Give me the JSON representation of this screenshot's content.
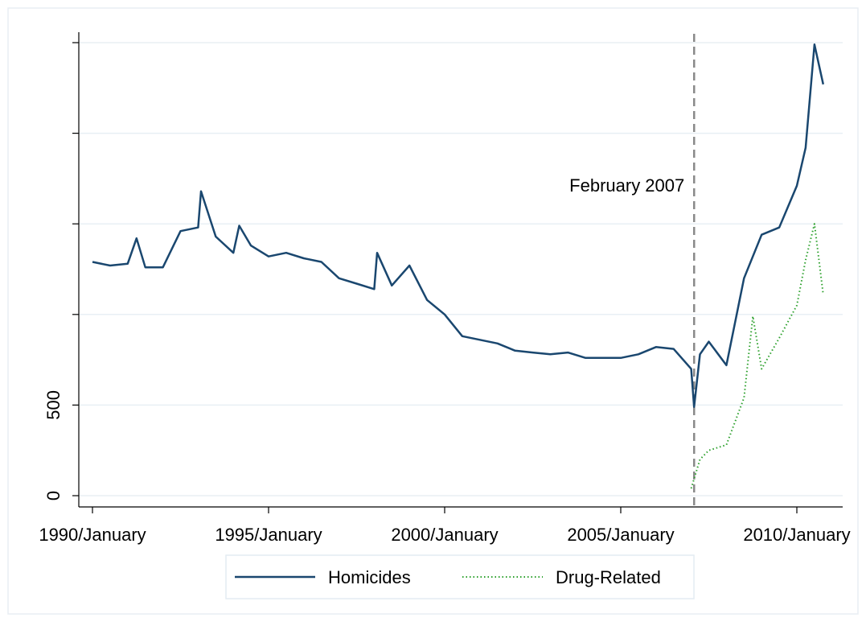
{
  "chart_data": {
    "type": "line",
    "title": "",
    "xlabel": "",
    "ylabel": "",
    "xlim": [
      "1990-01",
      "2010-12"
    ],
    "ylim": [
      0,
      2500
    ],
    "x_ticks": [
      "1990/January",
      "1995/January",
      "2000/January",
      "2005/January",
      "2010/January"
    ],
    "y_tick_values": [
      0,
      500,
      1000,
      1500,
      2000,
      2500
    ],
    "y_tick_labels": [
      "0",
      "500",
      "",
      "",
      "",
      ""
    ],
    "grid": "horizontal",
    "annotation": {
      "label": "February 2007",
      "x": "2007-02"
    },
    "legend": {
      "position": "bottom"
    },
    "series": [
      {
        "name": "Homicides",
        "color": "#1a476f",
        "style": "solid",
        "points": [
          [
            "1990-01",
            1290
          ],
          [
            "1990-07",
            1270
          ],
          [
            "1991-01",
            1280
          ],
          [
            "1991-04",
            1420
          ],
          [
            "1991-07",
            1260
          ],
          [
            "1992-01",
            1260
          ],
          [
            "1992-07",
            1460
          ],
          [
            "1993-01",
            1480
          ],
          [
            "1993-02",
            1680
          ],
          [
            "1993-07",
            1430
          ],
          [
            "1994-01",
            1340
          ],
          [
            "1994-03",
            1490
          ],
          [
            "1994-07",
            1380
          ],
          [
            "1995-01",
            1320
          ],
          [
            "1995-07",
            1340
          ],
          [
            "1996-01",
            1310
          ],
          [
            "1996-07",
            1290
          ],
          [
            "1997-01",
            1200
          ],
          [
            "1997-07",
            1170
          ],
          [
            "1998-01",
            1140
          ],
          [
            "1998-02",
            1340
          ],
          [
            "1998-07",
            1160
          ],
          [
            "1999-01",
            1270
          ],
          [
            "1999-07",
            1080
          ],
          [
            "2000-01",
            1000
          ],
          [
            "2000-07",
            880
          ],
          [
            "2001-01",
            860
          ],
          [
            "2001-07",
            840
          ],
          [
            "2002-01",
            800
          ],
          [
            "2002-07",
            790
          ],
          [
            "2003-01",
            780
          ],
          [
            "2003-07",
            790
          ],
          [
            "2004-01",
            760
          ],
          [
            "2004-07",
            760
          ],
          [
            "2005-01",
            760
          ],
          [
            "2005-07",
            780
          ],
          [
            "2006-01",
            820
          ],
          [
            "2006-07",
            810
          ],
          [
            "2007-01",
            700
          ],
          [
            "2007-02",
            490
          ],
          [
            "2007-04",
            780
          ],
          [
            "2007-07",
            850
          ],
          [
            "2008-01",
            720
          ],
          [
            "2008-07",
            1200
          ],
          [
            "2009-01",
            1440
          ],
          [
            "2009-07",
            1480
          ],
          [
            "2010-01",
            1710
          ],
          [
            "2010-04",
            1920
          ],
          [
            "2010-07",
            2490
          ],
          [
            "2010-10",
            2270
          ]
        ]
      },
      {
        "name": "Drug-Related",
        "color": "#2ca02c",
        "style": "dotted",
        "points": [
          [
            "2007-01",
            40
          ],
          [
            "2007-04",
            200
          ],
          [
            "2007-07",
            250
          ],
          [
            "2008-01",
            280
          ],
          [
            "2008-07",
            540
          ],
          [
            "2008-10",
            990
          ],
          [
            "2009-01",
            700
          ],
          [
            "2009-07",
            870
          ],
          [
            "2010-01",
            1050
          ],
          [
            "2010-04",
            1300
          ],
          [
            "2010-07",
            1500
          ],
          [
            "2010-10",
            1110
          ]
        ]
      }
    ]
  }
}
